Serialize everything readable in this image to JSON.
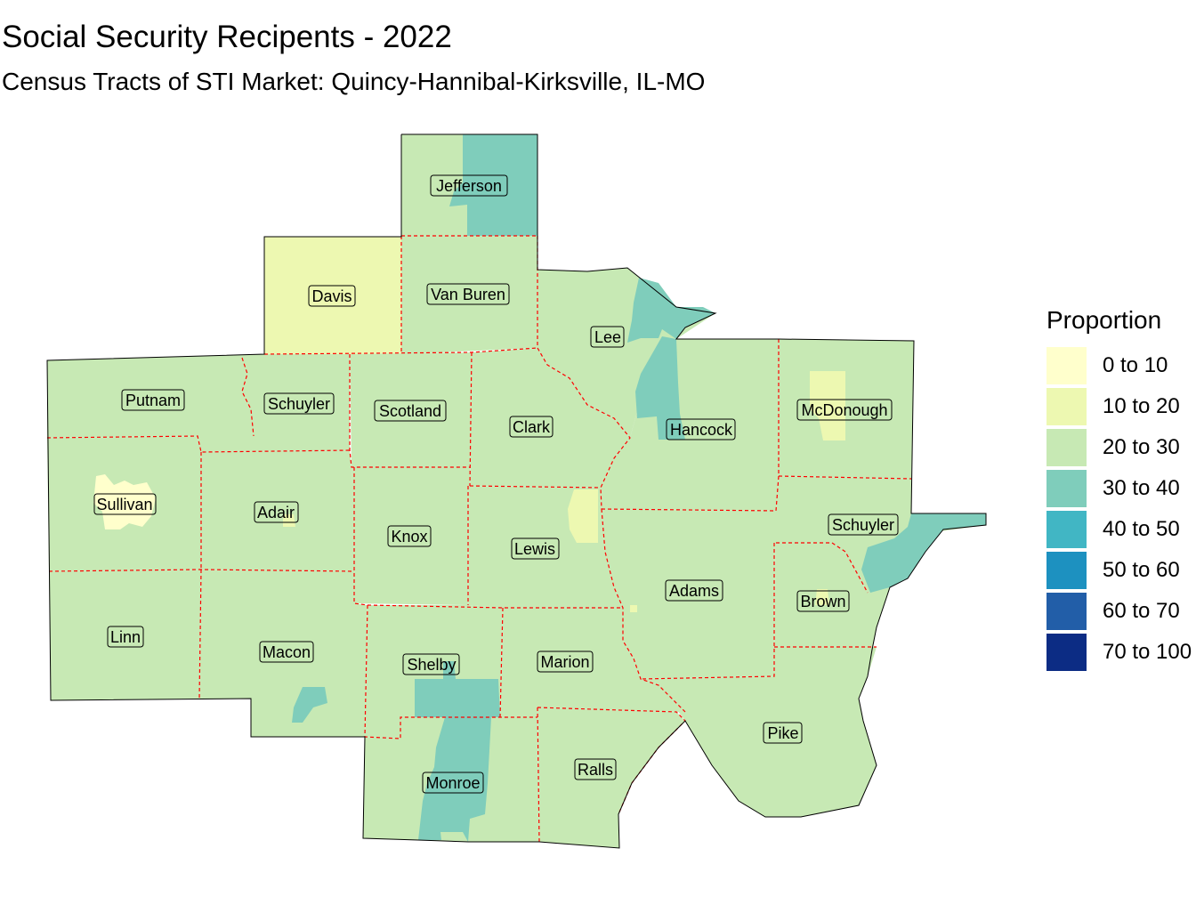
{
  "title": "Social Security Recipents - 2022",
  "subtitle": "Census Tracts of STI Market: Quincy-Hannibal-Kirksville, IL-MO",
  "legend": {
    "title": "Proportion",
    "items": [
      {
        "label": "0 to 10",
        "color": "#FFFFCC"
      },
      {
        "label": "10 to 20",
        "color": "#EDF8B1"
      },
      {
        "label": "20 to 30",
        "color": "#C7E9B4"
      },
      {
        "label": "30 to 40",
        "color": "#7FCDBB"
      },
      {
        "label": "40 to 50",
        "color": "#41B6C4"
      },
      {
        "label": "50 to 60",
        "color": "#1D91C0"
      },
      {
        "label": "60 to 70",
        "color": "#225EA8"
      },
      {
        "label": "70 to 100",
        "color": "#0C2C84"
      }
    ]
  },
  "border_color": "#FF0000",
  "counties": {
    "jefferson": "Jefferson",
    "davis": "Davis",
    "van_buren": "Van Buren",
    "lee": "Lee",
    "putnam": "Putnam",
    "schuyler_mo": "Schuyler",
    "scotland": "Scotland",
    "clark": "Clark",
    "hancock": "Hancock",
    "mcdonough": "McDonough",
    "sullivan": "Sullivan",
    "adair": "Adair",
    "knox": "Knox",
    "lewis": "Lewis",
    "schuyler_il": "Schuyler",
    "adams": "Adams",
    "brown": "Brown",
    "linn": "Linn",
    "macon": "Macon",
    "shelby": "Shelby",
    "marion": "Marion",
    "pike": "Pike",
    "monroe": "Monroe",
    "ralls": "Ralls"
  }
}
